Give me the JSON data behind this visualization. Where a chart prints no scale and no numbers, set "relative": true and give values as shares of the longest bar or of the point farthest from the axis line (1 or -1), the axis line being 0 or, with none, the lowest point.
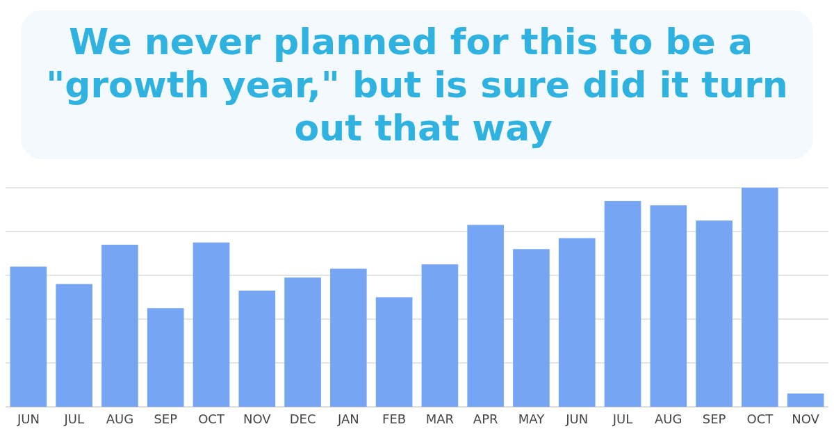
{
  "chart_data": {
    "type": "bar",
    "title": "We never planned for this to be a \"growth year,\" but is sure did it turn out that way",
    "categories": [
      "JUN",
      "JUL",
      "AUG",
      "SEP",
      "OCT",
      "NOV",
      "DEC",
      "JAN",
      "FEB",
      "MAR",
      "APR",
      "MAY",
      "JUN",
      "JUL",
      "AUG",
      "SEP",
      "OCT",
      "NOV"
    ],
    "values": [
      0.64,
      0.56,
      0.74,
      0.45,
      0.75,
      0.53,
      0.59,
      0.63,
      0.5,
      0.65,
      0.83,
      0.72,
      0.77,
      0.94,
      0.92,
      0.85,
      1,
      0.06
    ],
    "color": "#76a5f3",
    "relative": true,
    "grid": true
  }
}
